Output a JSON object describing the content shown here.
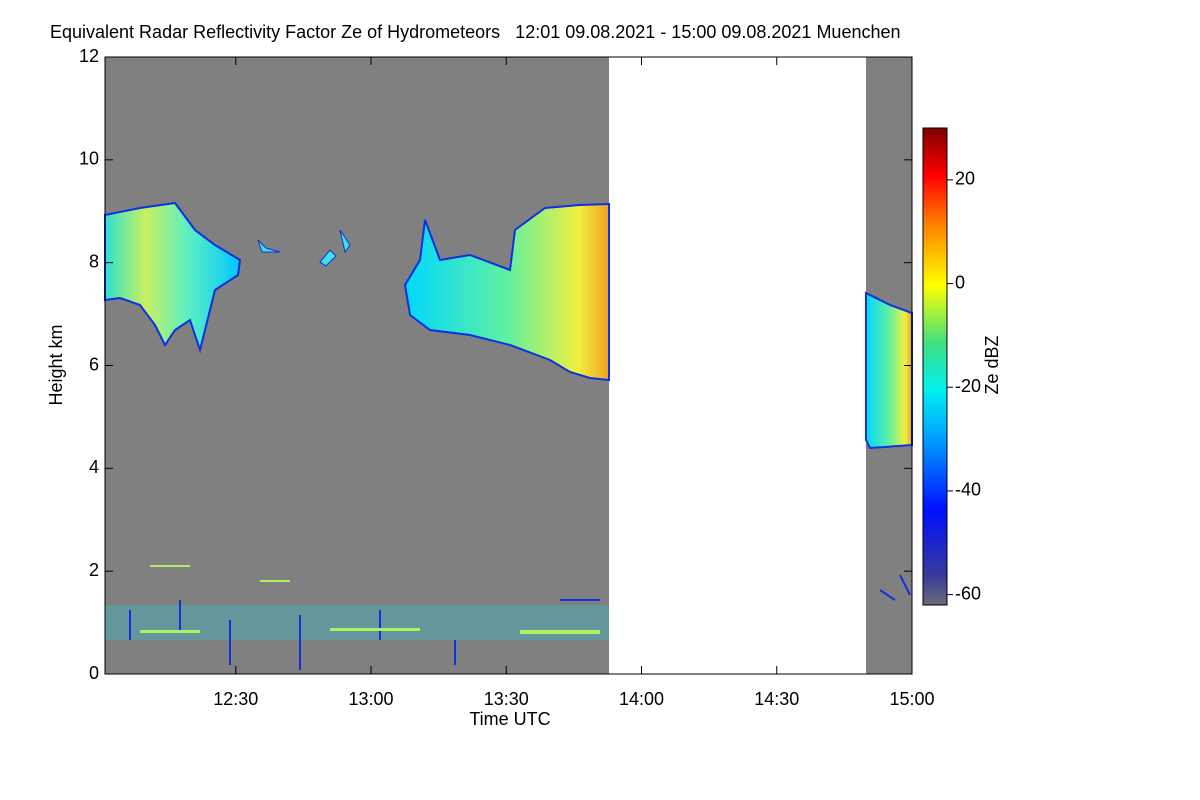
{
  "chart_data": {
    "type": "heatmap",
    "title": "Equivalent Radar Reflectivity Factor Ze of Hydrometeors   12:01 09.08.2021 - 15:00 09.08.2021 Muenchen",
    "xlabel": "Time UTC",
    "ylabel": "Height km",
    "xlim": [
      721,
      900
    ],
    "xticks": [
      {
        "value": 750,
        "label": "12:30"
      },
      {
        "value": 780,
        "label": "13:00"
      },
      {
        "value": 810,
        "label": "13:30"
      },
      {
        "value": 840,
        "label": "14:00"
      },
      {
        "value": 870,
        "label": "14:30"
      },
      {
        "value": 900,
        "label": "15:00"
      }
    ],
    "ylim": [
      0,
      12
    ],
    "yticks": [
      0,
      2,
      4,
      6,
      8,
      10,
      12
    ],
    "colorbar": {
      "label": "Ze dBZ",
      "lim": [
        -62,
        30
      ],
      "ticks": [
        -60,
        -40,
        -20,
        0,
        20
      ]
    }
  }
}
